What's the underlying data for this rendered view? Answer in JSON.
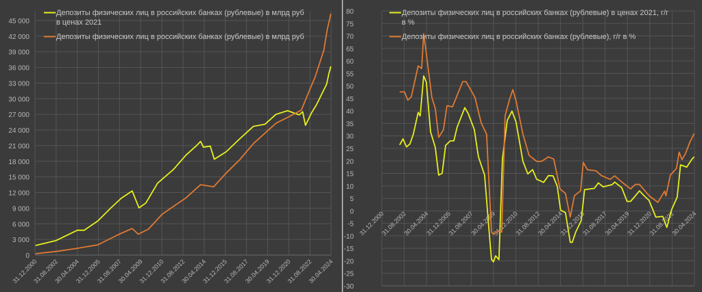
{
  "colors": {
    "background": "#3b3b3b",
    "grid": "#555555",
    "yellow": "#e8f01e",
    "orange": "#e07a34",
    "divider": "#c8c8c8"
  },
  "chart_data": [
    {
      "type": "line",
      "title": "",
      "xlabel": "",
      "ylabel": "",
      "ylim": [
        0,
        45000
      ],
      "y_ticks": [
        "0",
        "3 000",
        "6 000",
        "9 000",
        "12 000",
        "15 000",
        "18 000",
        "21 000",
        "24 000",
        "27 000",
        "30 000",
        "33 000",
        "36 000",
        "39 000",
        "42 000",
        "45 000"
      ],
      "y_tick_values": [
        0,
        3000,
        6000,
        9000,
        12000,
        15000,
        18000,
        21000,
        24000,
        27000,
        30000,
        33000,
        36000,
        39000,
        42000,
        45000
      ],
      "x_ticks": [
        "31.12.2000",
        "31.08.2002",
        "30.04.2004",
        "31.12.2005",
        "31.08.2007",
        "30.04.2009",
        "31.12.2010",
        "31.08.2012",
        "30.04.2014",
        "31.12.2015",
        "31.08.2017",
        "30.04.2019",
        "31.12.2020",
        "31.08.2022",
        "30.04.2024"
      ],
      "xlim": [
        2001.0,
        2024.33
      ],
      "grid": true,
      "legend_position": "top-left",
      "series": [
        {
          "name": "Депозиты физических лиц в российских банках (рублевые) в млрд руб",
          "name_line2": "в ценах 2021",
          "color": "yellow",
          "x": [
            2001.04,
            2002.67,
            2004.34,
            2004.88,
            2005.96,
            2007.04,
            2007.8,
            2008.66,
            2009.2,
            2009.74,
            2010.66,
            2011.9,
            2012.9,
            2013.73,
            2014.05,
            2014.27,
            2014.81,
            2015.13,
            2016.05,
            2017.13,
            2018.21,
            2019.12,
            2019.99,
            2020.9,
            2021.82,
            2022.09,
            2022.31,
            2022.79,
            2023.17,
            2023.98,
            2024.15,
            2024.31
          ],
          "y": [
            1840,
            2800,
            4760,
            4760,
            6560,
            9180,
            10900,
            12300,
            9050,
            10000,
            13800,
            16400,
            19200,
            21000,
            21800,
            20700,
            20900,
            18400,
            19800,
            22300,
            24700,
            25100,
            27000,
            27700,
            26900,
            27500,
            24900,
            27300,
            28800,
            32800,
            34800,
            36200
          ]
        },
        {
          "name": "Депозиты физических лиц в российских банках (рублевые) в млрд руб",
          "color": "orange",
          "x": [
            2001.04,
            2002.67,
            2004.34,
            2005.96,
            2007.58,
            2008.66,
            2009.14,
            2009.95,
            2011.03,
            2012.9,
            2014.05,
            2015.08,
            2016.05,
            2017.13,
            2018.21,
            2019.99,
            2021.07,
            2021.98,
            2022.52,
            2023.06,
            2023.76,
            2024.03,
            2024.31
          ],
          "y": [
            260,
            700,
            1300,
            1970,
            3930,
            5100,
            4000,
            5000,
            7860,
            11000,
            13500,
            13100,
            15700,
            18300,
            21400,
            25300,
            26600,
            27800,
            31000,
            34100,
            39300,
            43300,
            46300
          ]
        }
      ]
    },
    {
      "type": "line",
      "title": "",
      "xlabel": "",
      "ylabel": "",
      "ylim": [
        -30,
        80
      ],
      "y_ticks": [
        "-30",
        "-25",
        "-20",
        "-15",
        "-10",
        "-5",
        "0",
        "5",
        "10",
        "15",
        "20",
        "25",
        "30",
        "35",
        "40",
        "45",
        "50",
        "55",
        "60",
        "65",
        "70",
        "75",
        "80"
      ],
      "y_tick_values": [
        -30,
        -25,
        -20,
        -15,
        -10,
        -5,
        0,
        5,
        10,
        15,
        20,
        25,
        30,
        35,
        40,
        45,
        50,
        55,
        60,
        65,
        70,
        75,
        80
      ],
      "x_ticks": [
        "31.12.2000",
        "31.08.2002",
        "30.04.2004",
        "31.12.2005",
        "31.08.2007",
        "30.04.2009",
        "31.12.2010",
        "31.08.2012",
        "30.04.2014",
        "31.12.2015",
        "31.08.2017",
        "30.04.2019",
        "31.12.2020",
        "31.08.2022",
        "30.04.2024"
      ],
      "xlim": [
        2001.0,
        2024.33
      ],
      "grid": true,
      "legend_position": "top-left",
      "series": [
        {
          "name": "Депозиты физических лиц в российских банках (рублевые) в ценах 2021, г/г",
          "name_line2": "в %",
          "color": "yellow",
          "x": [
            2002.33,
            2002.58,
            2002.84,
            2003.1,
            2003.35,
            2003.71,
            2003.86,
            2004.12,
            2004.32,
            2004.63,
            2004.99,
            2005.24,
            2005.5,
            2005.76,
            2006.11,
            2006.37,
            2006.62,
            2007.19,
            2007.44,
            2007.9,
            2008.21,
            2008.67,
            2008.98,
            2009.18,
            2009.33,
            2009.49,
            2009.74,
            2010.0,
            2010.36,
            2010.71,
            2011.02,
            2011.53,
            2011.89,
            2012.25,
            2012.56,
            2012.76,
            2013.07,
            2013.43,
            2013.78,
            2014.09,
            2014.34,
            2014.7,
            2015.06,
            2015.21,
            2015.47,
            2015.88,
            2016.13,
            2016.85,
            2017.16,
            2017.52,
            2018.18,
            2018.38,
            2018.9,
            2019.3,
            2019.56,
            2019.92,
            2020.22,
            2020.58,
            2020.94,
            2021.45,
            2021.96,
            2022.27,
            2022.63,
            2023.04,
            2023.29,
            2023.75,
            2024.16,
            2024.31
          ],
          "y": [
            26.4,
            28.8,
            25.6,
            26.8,
            30.7,
            39.4,
            38,
            54,
            51.5,
            31.7,
            25.3,
            14.3,
            15,
            26.2,
            28,
            28,
            33.5,
            41.3,
            39,
            32.5,
            21.6,
            14.3,
            -6.6,
            -19.4,
            -20.4,
            -18,
            -19.5,
            20.8,
            36.2,
            39.9,
            35.5,
            19.8,
            14.8,
            16.5,
            12.6,
            12.2,
            11.4,
            14.1,
            14,
            9.8,
            0.3,
            -0.7,
            -12.6,
            -12.6,
            -8.5,
            -3.9,
            8.5,
            9,
            11.2,
            9.6,
            10.5,
            11.5,
            9.3,
            3.8,
            3.8,
            6,
            8,
            6,
            4.2,
            -2.5,
            -2.2,
            -6.6,
            0.6,
            5.5,
            18.4,
            17.5,
            20.8,
            21.6
          ]
        },
        {
          "name": "Депозиты физических лиц в российских банках (рублевые), г/г в %",
          "color": "orange",
          "x": [
            2002.33,
            2002.69,
            2002.94,
            2003.2,
            2003.71,
            2003.97,
            2004.12,
            2004.27,
            2004.73,
            2004.99,
            2005.24,
            2005.6,
            2005.86,
            2006.27,
            2007.03,
            2007.29,
            2007.95,
            2008.41,
            2008.82,
            2009.18,
            2009.33,
            2009.69,
            2009.95,
            2010.2,
            2010.51,
            2010.77,
            2011.02,
            2011.53,
            2011.99,
            2012.56,
            2012.91,
            2013.43,
            2013.83,
            2014.29,
            2014.7,
            2015.06,
            2015.37,
            2015.83,
            2016.03,
            2016.34,
            2017.0,
            2017.36,
            2018.03,
            2018.38,
            2018.9,
            2019.56,
            2019.92,
            2020.22,
            2020.94,
            2021.6,
            2022.1,
            2022.2,
            2022.53,
            2022.99,
            2023.19,
            2023.4,
            2023.65,
            2024.0,
            2024.31
          ],
          "y": [
            47.6,
            47.6,
            44.3,
            45.7,
            58,
            57,
            70.9,
            65,
            45.4,
            40.9,
            29.4,
            32.5,
            42.1,
            41.6,
            51.7,
            51.7,
            45.4,
            35.3,
            30.7,
            -8.5,
            -9.4,
            -8,
            -8.5,
            38,
            44.3,
            48.5,
            44,
            30.7,
            22.2,
            19.8,
            19.8,
            21.6,
            20.7,
            8.8,
            7,
            -2.5,
            6.1,
            8,
            19.4,
            16.5,
            16,
            14.2,
            12.6,
            14,
            11.6,
            8.8,
            10.6,
            10.6,
            6.1,
            3.4,
            7.9,
            6,
            14.3,
            17,
            23.5,
            20.5,
            22.8,
            27.6,
            30.9
          ]
        }
      ]
    }
  ]
}
